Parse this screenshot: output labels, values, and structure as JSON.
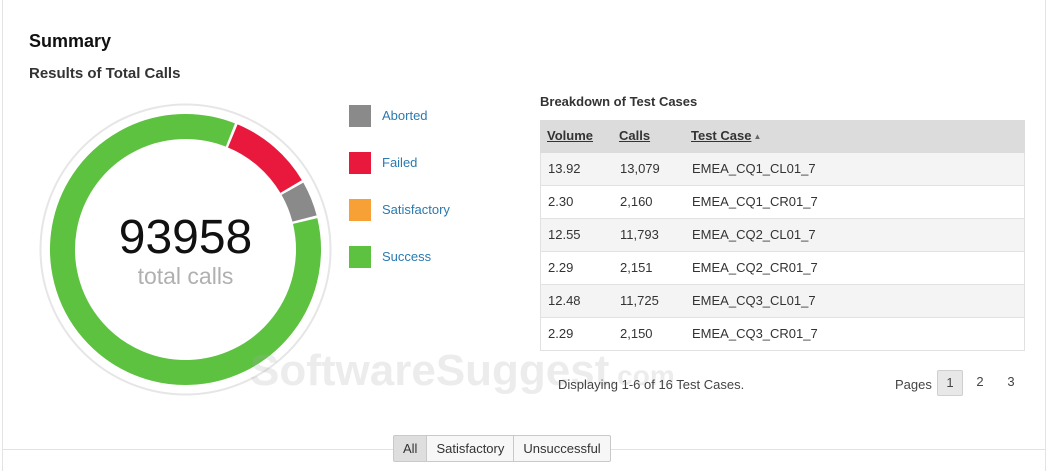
{
  "summary": {
    "title": "Summary",
    "subtitle": "Results of Total Calls"
  },
  "donut": {
    "total": "93958",
    "total_label": "total calls",
    "ring_color": "#e6e6e6"
  },
  "chart_data": {
    "type": "pie",
    "categories": [
      "Aborted",
      "Failed",
      "Satisfactory",
      "Success"
    ],
    "values": [
      4.5,
      10.5,
      0,
      85.0
    ],
    "colors": [
      "#8a8a8a",
      "#e8193c",
      "#f7a035",
      "#5cc240"
    ],
    "title": "",
    "legend_position": "right"
  },
  "legend": [
    {
      "label": "Aborted",
      "color": "#8a8a8a"
    },
    {
      "label": "Failed",
      "color": "#e8193c"
    },
    {
      "label": "Satisfactory",
      "color": "#f7a035"
    },
    {
      "label": "Success",
      "color": "#5cc240"
    }
  ],
  "breakdown": {
    "title": "Breakdown of Test Cases",
    "columns": [
      "Volume",
      "Calls",
      "Test Case"
    ],
    "sort_icon": "sort-asc-icon",
    "rows": [
      [
        "13.92",
        "13,079",
        "EMEA_CQ1_CL01_7"
      ],
      [
        "2.30",
        "2,160",
        "EMEA_CQ1_CR01_7"
      ],
      [
        "12.55",
        "11,793",
        "EMEA_CQ2_CL01_7"
      ],
      [
        "2.29",
        "2,151",
        "EMEA_CQ2_CR01_7"
      ],
      [
        "12.48",
        "11,725",
        "EMEA_CQ3_CL01_7"
      ],
      [
        "2.29",
        "2,150",
        "EMEA_CQ3_CR01_7"
      ]
    ],
    "displaying": "Displaying 1-6 of 16 Test Cases.",
    "pages_label": "Pages",
    "pages": [
      "1",
      "2",
      "3"
    ],
    "current_page": "1"
  },
  "filters": {
    "buttons": [
      "All",
      "Satisfactory",
      "Unsuccessful"
    ],
    "selected": "All"
  },
  "watermark": {
    "main": "SoftwareSuggest",
    "domain": ".com"
  }
}
